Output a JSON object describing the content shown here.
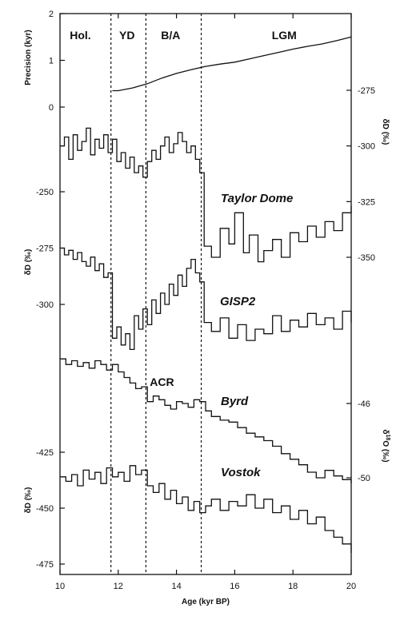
{
  "chart_data": {
    "type": "line",
    "x_axis": {
      "label": "Age (kyr BP)",
      "range": [
        10,
        20
      ],
      "ticks": [
        10,
        12,
        14,
        16,
        18,
        20
      ]
    },
    "periods": [
      {
        "label": "Hol.",
        "x": 10.7
      },
      {
        "label": "YD",
        "x": 12.3
      },
      {
        "label": "B/A",
        "x": 13.8
      },
      {
        "label": "LGM",
        "x": 17.7
      }
    ],
    "boundaries": [
      11.75,
      12.95,
      14.85
    ],
    "annotations": [
      {
        "label": "ACR",
        "x": 13.5,
        "y": 0.48
      }
    ],
    "axes": [
      {
        "id": "precision",
        "label": "Precision (kyr)",
        "side": "left",
        "ticks": [
          0,
          1,
          2
        ]
      },
      {
        "id": "taylor",
        "label": "δD (‰)",
        "side": "right",
        "ticks": [
          -275,
          -300,
          -325,
          -350
        ]
      },
      {
        "id": "gisp2",
        "label": "δD (‰)",
        "side": "left",
        "ticks": [
          -250,
          -275,
          -300
        ]
      },
      {
        "id": "byrd",
        "label": "δ18O (‰)",
        "side": "right",
        "ticks": [
          -46,
          -50
        ]
      },
      {
        "id": "vostok",
        "label": "δD (‰)",
        "side": "left",
        "ticks": [
          -425,
          -450,
          -475
        ]
      }
    ],
    "series": [
      {
        "name": "Taylor Dome",
        "axis": "taylor",
        "step": true,
        "x": [
          10.0,
          10.15,
          10.3,
          10.45,
          10.6,
          10.75,
          10.9,
          11.05,
          11.2,
          11.35,
          11.5,
          11.65,
          11.8,
          11.95,
          12.1,
          12.25,
          12.4,
          12.55,
          12.7,
          12.85,
          13.0,
          13.15,
          13.3,
          13.45,
          13.6,
          13.75,
          13.9,
          14.05,
          14.2,
          14.35,
          14.5,
          14.65,
          14.8,
          14.95,
          15.2,
          15.5,
          15.8,
          16.0,
          16.3,
          16.5,
          16.8,
          17.0,
          17.3,
          17.6,
          17.9,
          18.2,
          18.5,
          18.8,
          19.1,
          19.4,
          19.7,
          20.0
        ],
        "y": [
          -300,
          -296,
          -306,
          -295,
          -302,
          -298,
          -292,
          -304,
          -297,
          -301,
          -295,
          -303,
          -297,
          -307,
          -303,
          -310,
          -305,
          -312,
          -309,
          -314,
          -307,
          -302,
          -306,
          -300,
          -296,
          -303,
          -299,
          -294,
          -298,
          -303,
          -300,
          -306,
          -312,
          -345,
          -350,
          -337,
          -344,
          -330,
          -348,
          -340,
          -352,
          -347,
          -342,
          -350,
          -339,
          -343,
          -336,
          -341,
          -334,
          -338,
          -330,
          -327
        ]
      },
      {
        "name": "GISP2",
        "axis": "gisp2",
        "step": true,
        "x": [
          10.0,
          10.15,
          10.3,
          10.45,
          10.6,
          10.75,
          10.9,
          11.05,
          11.2,
          11.35,
          11.5,
          11.65,
          11.8,
          11.95,
          12.1,
          12.25,
          12.4,
          12.55,
          12.7,
          12.85,
          13.0,
          13.15,
          13.3,
          13.45,
          13.6,
          13.75,
          13.9,
          14.05,
          14.2,
          14.35,
          14.5,
          14.65,
          14.8,
          14.95,
          15.2,
          15.5,
          15.8,
          16.1,
          16.4,
          16.7,
          17.0,
          17.3,
          17.6,
          17.9,
          18.2,
          18.5,
          18.8,
          19.1,
          19.4,
          19.7,
          20.0
        ],
        "y": [
          -275,
          -278,
          -276,
          -280,
          -277,
          -281,
          -283,
          -279,
          -285,
          -282,
          -288,
          -286,
          -315,
          -310,
          -318,
          -313,
          -320,
          -305,
          -311,
          -302,
          -309,
          -298,
          -304,
          -295,
          -300,
          -291,
          -296,
          -287,
          -292,
          -284,
          -280,
          -286,
          -290,
          -308,
          -312,
          -306,
          -315,
          -309,
          -316,
          -311,
          -313,
          -305,
          -312,
          -307,
          -310,
          -304,
          -309,
          -306,
          -311,
          -303,
          -308
        ]
      },
      {
        "name": "Byrd",
        "axis": "byrd",
        "step": true,
        "x": [
          10.0,
          10.2,
          10.4,
          10.6,
          10.8,
          11.0,
          11.2,
          11.4,
          11.6,
          11.8,
          12.0,
          12.2,
          12.4,
          12.6,
          12.8,
          13.0,
          13.2,
          13.4,
          13.6,
          13.8,
          14.0,
          14.2,
          14.4,
          14.6,
          14.8,
          15.0,
          15.2,
          15.5,
          15.8,
          16.1,
          16.4,
          16.7,
          17.0,
          17.3,
          17.6,
          17.9,
          18.2,
          18.5,
          18.8,
          19.1,
          19.4,
          19.7,
          20.0
        ],
        "y": [
          -43.6,
          -43.9,
          -43.7,
          -44.0,
          -43.8,
          -44.1,
          -43.7,
          -43.9,
          -44.2,
          -43.9,
          -44.3,
          -44.6,
          -44.9,
          -45.2,
          -45.1,
          -45.9,
          -45.6,
          -45.8,
          -46.1,
          -46.3,
          -45.9,
          -46.0,
          -46.2,
          -45.8,
          -45.9,
          -46.4,
          -46.7,
          -46.9,
          -47.0,
          -47.3,
          -47.6,
          -47.8,
          -48.0,
          -48.3,
          -48.7,
          -49.0,
          -49.3,
          -49.7,
          -50.0,
          -49.6,
          -49.9,
          -50.1,
          -50.3
        ]
      },
      {
        "name": "Vostok",
        "axis": "vostok",
        "step": true,
        "x": [
          10.0,
          10.2,
          10.4,
          10.6,
          10.8,
          11.0,
          11.2,
          11.4,
          11.6,
          11.8,
          12.0,
          12.2,
          12.4,
          12.6,
          12.8,
          13.0,
          13.2,
          13.4,
          13.6,
          13.8,
          14.0,
          14.2,
          14.4,
          14.6,
          14.8,
          15.0,
          15.2,
          15.5,
          15.8,
          16.1,
          16.4,
          16.7,
          17.0,
          17.3,
          17.6,
          17.9,
          18.2,
          18.5,
          18.8,
          19.1,
          19.4,
          19.7,
          20.0
        ],
        "y": [
          -436,
          -438,
          -435,
          -440,
          -433,
          -437,
          -434,
          -439,
          -432,
          -436,
          -434,
          -438,
          -431,
          -435,
          -433,
          -440,
          -443,
          -439,
          -446,
          -442,
          -448,
          -445,
          -451,
          -447,
          -452,
          -449,
          -446,
          -451,
          -447,
          -449,
          -444,
          -450,
          -446,
          -452,
          -449,
          -455,
          -451,
          -457,
          -454,
          -460,
          -463,
          -466,
          -470
        ]
      },
      {
        "name": "Precision",
        "axis": "precision",
        "step": false,
        "x": [
          11.8,
          12.0,
          12.5,
          13.0,
          13.5,
          14.0,
          14.5,
          15.0,
          15.5,
          16.0,
          16.5,
          17.0,
          17.5,
          18.0,
          18.5,
          19.0,
          19.5,
          20.0
        ],
        "y": [
          0.35,
          0.35,
          0.41,
          0.5,
          0.62,
          0.72,
          0.8,
          0.87,
          0.92,
          0.96,
          1.03,
          1.1,
          1.17,
          1.24,
          1.3,
          1.35,
          1.42,
          1.5
        ]
      }
    ]
  }
}
